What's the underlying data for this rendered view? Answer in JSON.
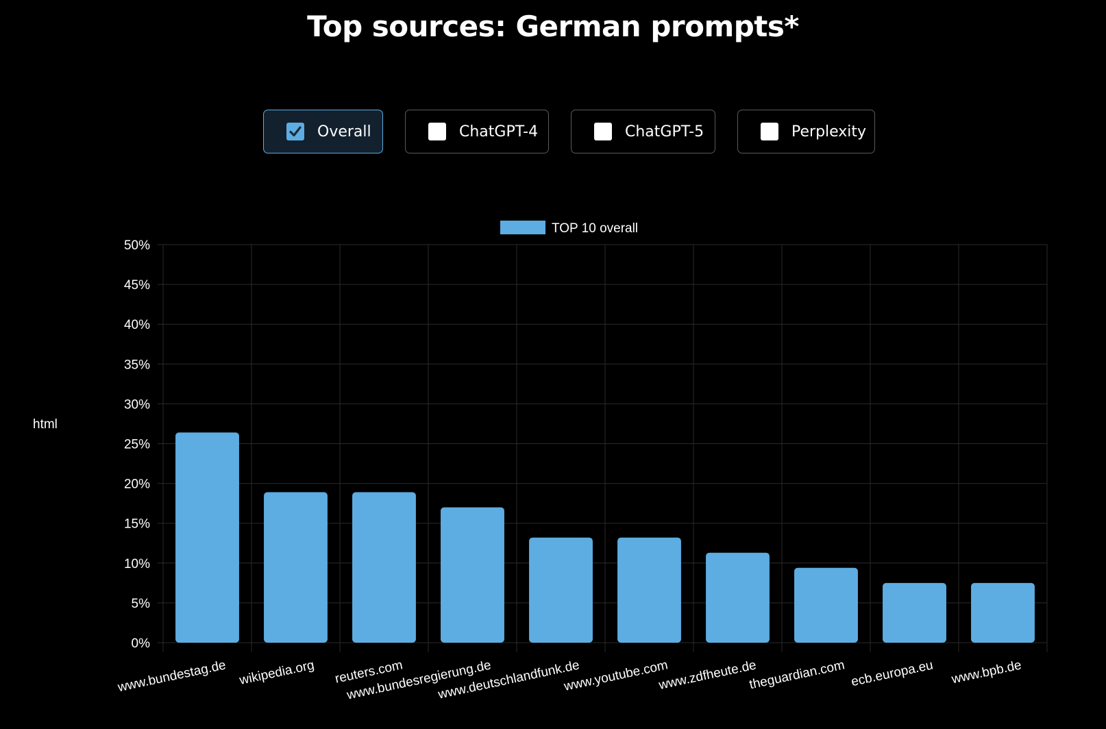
{
  "page": {
    "title": "Top sources: German prompts*"
  },
  "filters": [
    {
      "label": "Overall",
      "checked": true
    },
    {
      "label": "ChatGPT-4",
      "checked": false
    },
    {
      "label": "ChatGPT-5",
      "checked": false
    },
    {
      "label": "Perplexity",
      "checked": false
    }
  ],
  "colors": {
    "bar": "#5dade2",
    "active_border": "#5dade2",
    "grid": "#2a2a2a",
    "text": "#ffffff"
  },
  "chart_data": {
    "type": "bar",
    "title": "",
    "xlabel": "",
    "ylabel": "html",
    "categories": [
      "www.bundestag.de",
      "wikipedia.org",
      "reuters.com",
      "www.bundesregierung.de",
      "www.deutschlandfunk.de",
      "www.youtube.com",
      "www.zdfheute.de",
      "theguardian.com",
      "ecb.europa.eu",
      "www.bpb.de"
    ],
    "series": [
      {
        "name": "TOP 10 overall",
        "values": [
          26.4,
          18.9,
          18.9,
          17.0,
          13.2,
          13.2,
          11.3,
          9.4,
          7.5,
          7.5
        ]
      }
    ],
    "ylim": [
      0,
      50
    ],
    "yticks": [
      "0%",
      "5%",
      "10%",
      "15%",
      "20%",
      "25%",
      "30%",
      "35%",
      "40%",
      "45%",
      "50%"
    ],
    "grid": true,
    "legend": "top-center"
  }
}
